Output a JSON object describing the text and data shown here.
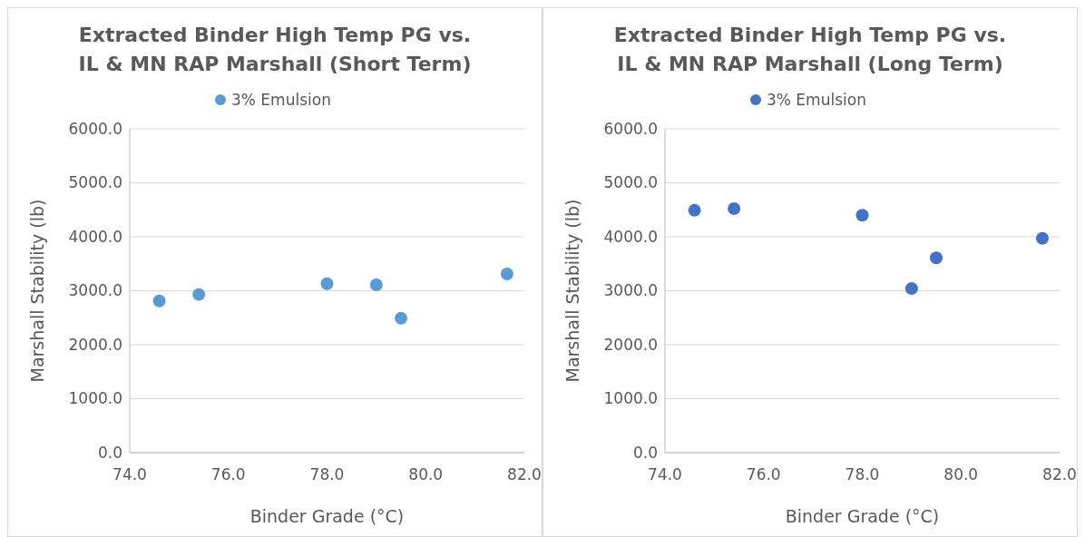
{
  "chart_data": [
    {
      "type": "scatter",
      "title": "Extracted Binder High Temp PG vs. IL & MN RAP Marshall (Short Term)",
      "xlabel": "Binder Grade (°C)",
      "ylabel": "Marshall Stability (lb)",
      "x": [
        74.6,
        75.4,
        78.0,
        79.0,
        79.5,
        81.65
      ],
      "series": [
        {
          "name": "3% Emulsion",
          "color": "#5b9bd5",
          "values": [
            2810,
            2930,
            3130,
            3110,
            2490,
            3310
          ]
        }
      ],
      "xlim": [
        74,
        82
      ],
      "xticks": [
        {
          "value": 74,
          "label": "74.0"
        },
        {
          "value": 76,
          "label": "76.0"
        },
        {
          "value": 78,
          "label": "78.0"
        },
        {
          "value": 80,
          "label": "80.0"
        },
        {
          "value": 82,
          "label": "82.0"
        }
      ],
      "ylim": [
        0,
        6000
      ],
      "yticks": [
        {
          "value": 0,
          "label": "0.0"
        },
        {
          "value": 1000,
          "label": "1000.0"
        },
        {
          "value": 2000,
          "label": "2000.0"
        },
        {
          "value": 3000,
          "label": "3000.0"
        },
        {
          "value": 4000,
          "label": "4000.0"
        },
        {
          "value": 5000,
          "label": "5000.0"
        },
        {
          "value": 6000,
          "label": "6000.0"
        }
      ],
      "grid": "y",
      "legend": "top",
      "marker": "circle"
    },
    {
      "type": "scatter",
      "title": "Extracted Binder High Temp PG vs. IL & MN RAP Marshall (Long Term)",
      "xlabel": "Binder Grade (°C)",
      "ylabel": "Marshall Stability (lb)",
      "x": [
        74.6,
        75.4,
        78.0,
        79.0,
        79.5,
        81.65
      ],
      "series": [
        {
          "name": "3% Emulsion",
          "color": "#4472c4",
          "values": [
            4490,
            4520,
            4400,
            3040,
            3610,
            3970
          ]
        }
      ],
      "xlim": [
        74,
        82
      ],
      "xticks": [
        {
          "value": 74,
          "label": "74.0"
        },
        {
          "value": 76,
          "label": "76.0"
        },
        {
          "value": 78,
          "label": "78.0"
        },
        {
          "value": 80,
          "label": "80.0"
        },
        {
          "value": 82,
          "label": "82.0"
        }
      ],
      "ylim": [
        0,
        6000
      ],
      "yticks": [
        {
          "value": 0,
          "label": "0.0"
        },
        {
          "value": 1000,
          "label": "1000.0"
        },
        {
          "value": 2000,
          "label": "2000.0"
        },
        {
          "value": 3000,
          "label": "3000.0"
        },
        {
          "value": 4000,
          "label": "4000.0"
        },
        {
          "value": 5000,
          "label": "5000.0"
        },
        {
          "value": 6000,
          "label": "6000.0"
        }
      ],
      "grid": "y",
      "legend": "top",
      "marker": "circle"
    }
  ]
}
